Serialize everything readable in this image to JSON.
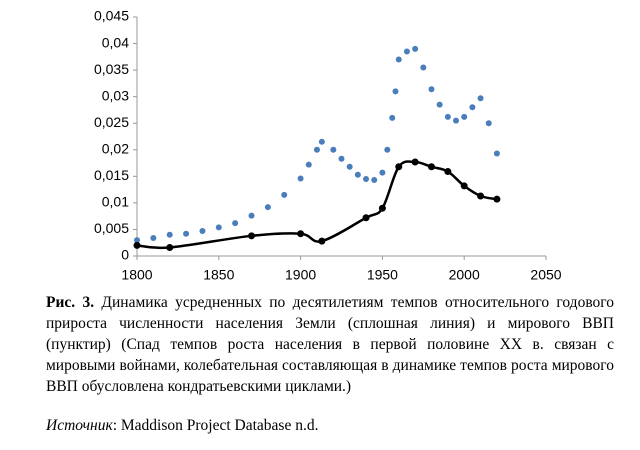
{
  "chart_data": {
    "type": "line",
    "xlim": [
      1800,
      2050
    ],
    "xticks": [
      1800,
      1850,
      1900,
      1950,
      2000,
      2050
    ],
    "ylim": [
      0,
      0.045
    ],
    "yticks": [
      0,
      {
        "value": 0.005,
        "label": "0,005"
      },
      {
        "value": 0.01,
        "label": "0,01"
      },
      {
        "value": 0.015,
        "label": "0,015"
      },
      {
        "value": 0.02,
        "label": "0,02"
      },
      {
        "value": 0.025,
        "label": "0,025"
      },
      {
        "value": 0.03,
        "label": "0,03"
      },
      {
        "value": 0.035,
        "label": "0,035"
      },
      {
        "value": 0.04,
        "label": "0,04"
      },
      {
        "value": 0.045,
        "label": "0,045"
      }
    ],
    "series": [
      {
        "style": "dotted",
        "color": "#4a7ebb",
        "x": [
          1800,
          1810,
          1820,
          1830,
          1840,
          1850,
          1860,
          1870,
          1880,
          1890,
          1900,
          1905,
          1910,
          1913,
          1920,
          1925,
          1930,
          1935,
          1940,
          1945,
          1950,
          1953,
          1956,
          1958,
          1960,
          1965,
          1970,
          1975,
          1980,
          1985,
          1990,
          1995,
          2000,
          2005,
          2010,
          2015,
          2020
        ],
        "values": [
          0.003,
          0.0034,
          0.004,
          0.0042,
          0.0047,
          0.0054,
          0.0062,
          0.0076,
          0.0092,
          0.0115,
          0.0146,
          0.0172,
          0.02,
          0.0215,
          0.02,
          0.0183,
          0.0168,
          0.0153,
          0.0145,
          0.0143,
          0.0157,
          0.02,
          0.026,
          0.031,
          0.037,
          0.0385,
          0.039,
          0.0355,
          0.0314,
          0.0285,
          0.0262,
          0.0255,
          0.0262,
          0.028,
          0.0297,
          0.025,
          0.0193
        ]
      },
      {
        "style": "solid",
        "color": "#000000",
        "x": [
          1800,
          1820,
          1870,
          1900,
          1913,
          1940,
          1950,
          1960,
          1970,
          1980,
          1990,
          2000,
          2010,
          2020
        ],
        "values": [
          0.002,
          0.0016,
          0.0038,
          0.0042,
          0.0028,
          0.0072,
          0.009,
          0.0168,
          0.0177,
          0.0168,
          0.0159,
          0.0132,
          0.0113,
          0.0107
        ]
      }
    ]
  },
  "caption": {
    "label": "Рис. 3.",
    "text": " Динамика усредненных по десятилетиям темпов относительного годового прироста численности населения Земли (сплошная линия) и мирового ВВП (пунктир) (Спад темпов роста населения в первой половине XX в. связан с мировыми войнами, колебательная составляющая в динамике темпов роста мирового ВВП обусловлена кондратьевскими циклами.)"
  },
  "source": {
    "label": "Источник",
    "text": ": Maddison Project Database n.d."
  }
}
